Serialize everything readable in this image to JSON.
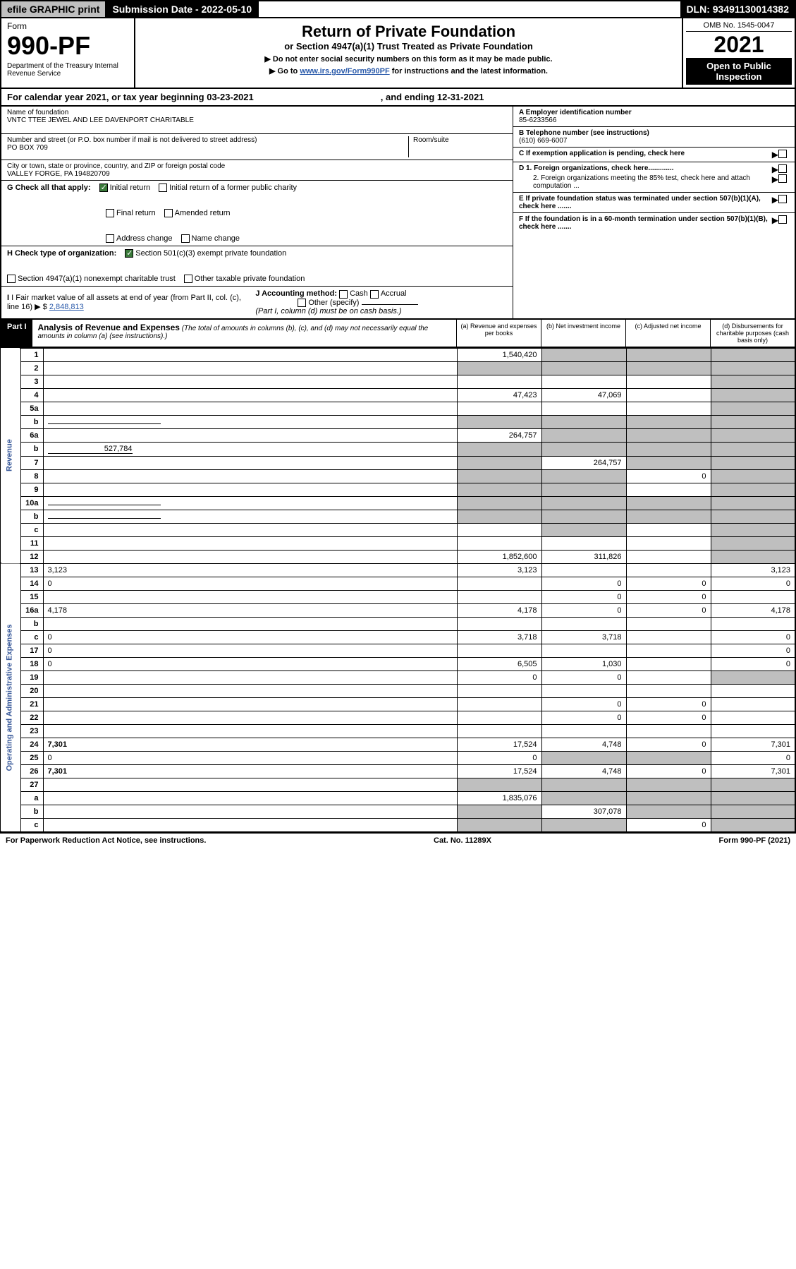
{
  "topbar": {
    "efile": "efile GRAPHIC print",
    "sub_date": "Submission Date - 2022-05-10",
    "dln": "DLN: 93491130014382"
  },
  "header": {
    "form_label": "Form",
    "form_num": "990-PF",
    "dept": "Department of the Treasury\nInternal Revenue Service",
    "title": "Return of Private Foundation",
    "subtitle": "or Section 4947(a)(1) Trust Treated as Private Foundation",
    "note1": "▶ Do not enter social security numbers on this form as it may be made public.",
    "note2_pre": "▶ Go to ",
    "note2_link": "www.irs.gov/Form990PF",
    "note2_post": " for instructions and the latest information.",
    "omb": "OMB No. 1545-0047",
    "year": "2021",
    "open": "Open to Public Inspection"
  },
  "cal_year": {
    "pre": "For calendar year 2021, or tax year beginning ",
    "begin": "03-23-2021",
    "mid": ", and ending ",
    "end": "12-31-2021"
  },
  "info": {
    "name_label": "Name of foundation",
    "name": "VNTC TTEE JEWEL AND LEE DAVENPORT CHARITABLE",
    "addr_label": "Number and street (or P.O. box number if mail is not delivered to street address)",
    "room_label": "Room/suite",
    "addr": "PO BOX 709",
    "city_label": "City or town, state or province, country, and ZIP or foreign postal code",
    "city": "VALLEY FORGE, PA  194820709",
    "a_label": "A Employer identification number",
    "a_val": "85-6233566",
    "b_label": "B Telephone number (see instructions)",
    "b_val": "(610) 669-6007",
    "c_label": "C If exemption application is pending, check here",
    "d1": "D 1. Foreign organizations, check here.............",
    "d2": "2. Foreign organizations meeting the 85% test, check here and attach computation ...",
    "e_label": "E  If private foundation status was terminated under section 507(b)(1)(A), check here .......",
    "f_label": "F  If the foundation is in a 60-month termination under section 507(b)(1)(B), check here .......",
    "g_label": "G Check all that apply:",
    "g_opts": [
      "Initial return",
      "Initial return of a former public charity",
      "Final return",
      "Amended return",
      "Address change",
      "Name change"
    ],
    "h_label": "H Check type of organization:",
    "h_opts": [
      "Section 501(c)(3) exempt private foundation",
      "Section 4947(a)(1) nonexempt charitable trust",
      "Other taxable private foundation"
    ],
    "i_label": "I Fair market value of all assets at end of year (from Part II, col. (c), line 16)",
    "i_val": "2,848,813",
    "j_label": "J Accounting method:",
    "j_opts": [
      "Cash",
      "Accrual",
      "Other (specify)"
    ],
    "j_note": "(Part I, column (d) must be on cash basis.)"
  },
  "part1": {
    "label": "Part I",
    "title": "Analysis of Revenue and Expenses",
    "note": "(The total of amounts in columns (b), (c), and (d) may not necessarily equal the amounts in column (a) (see instructions).)",
    "cols": [
      "(a)  Revenue and expenses per books",
      "(b)  Net investment income",
      "(c)  Adjusted net income",
      "(d)  Disbursements for charitable purposes (cash basis only)"
    ]
  },
  "side": {
    "rev": "Revenue",
    "exp": "Operating and Administrative Expenses"
  },
  "rows": [
    {
      "n": "1",
      "d": "",
      "a": "1,540,420",
      "b": "",
      "c": "",
      "sb": true,
      "sc": true,
      "sd": true
    },
    {
      "n": "2",
      "d": "",
      "a": "",
      "b": "",
      "c": "",
      "sa": true,
      "sb": true,
      "sc": true,
      "sd": true,
      "bold_not": true
    },
    {
      "n": "3",
      "d": "",
      "a": "",
      "b": "",
      "c": "",
      "sd": true
    },
    {
      "n": "4",
      "d": "",
      "a": "47,423",
      "b": "47,069",
      "c": "",
      "sd": true
    },
    {
      "n": "5a",
      "d": "",
      "a": "",
      "b": "",
      "c": "",
      "sd": true
    },
    {
      "n": "b",
      "d": "",
      "a": "",
      "b": "",
      "c": "",
      "sa": true,
      "sb": true,
      "sc": true,
      "sd": true,
      "inline": true
    },
    {
      "n": "6a",
      "d": "",
      "a": "264,757",
      "b": "",
      "c": "",
      "sb": true,
      "sc": true,
      "sd": true
    },
    {
      "n": "b",
      "d": "",
      "inline_val": "527,784",
      "a": "",
      "b": "",
      "c": "",
      "sa": true,
      "sb": true,
      "sc": true,
      "sd": true
    },
    {
      "n": "7",
      "d": "",
      "a": "",
      "b": "264,757",
      "c": "",
      "sa": true,
      "sc": true,
      "sd": true
    },
    {
      "n": "8",
      "d": "",
      "a": "",
      "b": "",
      "c": "0",
      "sa": true,
      "sb": true,
      "sd": true
    },
    {
      "n": "9",
      "d": "",
      "a": "",
      "b": "",
      "c": "",
      "sa": true,
      "sb": true,
      "sd": true
    },
    {
      "n": "10a",
      "d": "",
      "a": "",
      "b": "",
      "c": "",
      "sa": true,
      "sb": true,
      "sc": true,
      "sd": true,
      "inline": true
    },
    {
      "n": "b",
      "d": "",
      "a": "",
      "b": "",
      "c": "",
      "sa": true,
      "sb": true,
      "sc": true,
      "sd": true,
      "inline": true
    },
    {
      "n": "c",
      "d": "",
      "a": "",
      "b": "",
      "c": "",
      "sb": true,
      "sd": true
    },
    {
      "n": "11",
      "d": "",
      "a": "",
      "b": "",
      "c": "",
      "sd": true
    },
    {
      "n": "12",
      "d": "",
      "a": "1,852,600",
      "b": "311,826",
      "c": "",
      "bold": true,
      "sd": true
    },
    {
      "n": "13",
      "d": "3,123",
      "a": "3,123",
      "b": "",
      "c": ""
    },
    {
      "n": "14",
      "d": "0",
      "a": "",
      "b": "0",
      "c": "0"
    },
    {
      "n": "15",
      "d": "",
      "a": "",
      "b": "0",
      "c": "0"
    },
    {
      "n": "16a",
      "d": "4,178",
      "a": "4,178",
      "b": "0",
      "c": "0"
    },
    {
      "n": "b",
      "d": "",
      "a": "",
      "b": "",
      "c": ""
    },
    {
      "n": "c",
      "d": "0",
      "a": "3,718",
      "b": "3,718",
      "c": ""
    },
    {
      "n": "17",
      "d": "0",
      "a": "",
      "b": "",
      "c": ""
    },
    {
      "n": "18",
      "d": "0",
      "a": "6,505",
      "b": "1,030",
      "c": ""
    },
    {
      "n": "19",
      "d": "",
      "a": "0",
      "b": "0",
      "c": "",
      "sd": true
    },
    {
      "n": "20",
      "d": "",
      "a": "",
      "b": "",
      "c": ""
    },
    {
      "n": "21",
      "d": "",
      "a": "",
      "b": "0",
      "c": "0"
    },
    {
      "n": "22",
      "d": "",
      "a": "",
      "b": "0",
      "c": "0"
    },
    {
      "n": "23",
      "d": "",
      "a": "",
      "b": "",
      "c": ""
    },
    {
      "n": "24",
      "d": "7,301",
      "a": "17,524",
      "b": "4,748",
      "c": "0",
      "bold": true
    },
    {
      "n": "25",
      "d": "0",
      "a": "0",
      "b": "",
      "c": "",
      "sb": true,
      "sc": true
    },
    {
      "n": "26",
      "d": "7,301",
      "a": "17,524",
      "b": "4,748",
      "c": "0",
      "bold": true
    },
    {
      "n": "27",
      "d": "",
      "a": "",
      "b": "",
      "c": "",
      "sa": true,
      "sb": true,
      "sc": true,
      "sd": true
    },
    {
      "n": "a",
      "d": "",
      "a": "1,835,076",
      "b": "",
      "c": "",
      "bold": true,
      "sb": true,
      "sc": true,
      "sd": true
    },
    {
      "n": "b",
      "d": "",
      "a": "",
      "b": "307,078",
      "c": "",
      "bold": true,
      "sa": true,
      "sc": true,
      "sd": true
    },
    {
      "n": "c",
      "d": "",
      "a": "",
      "b": "",
      "c": "0",
      "bold": true,
      "sa": true,
      "sb": true,
      "sd": true
    }
  ],
  "footer": {
    "left": "For Paperwork Reduction Act Notice, see instructions.",
    "mid": "Cat. No. 11289X",
    "right": "Form 990-PF (2021)"
  }
}
